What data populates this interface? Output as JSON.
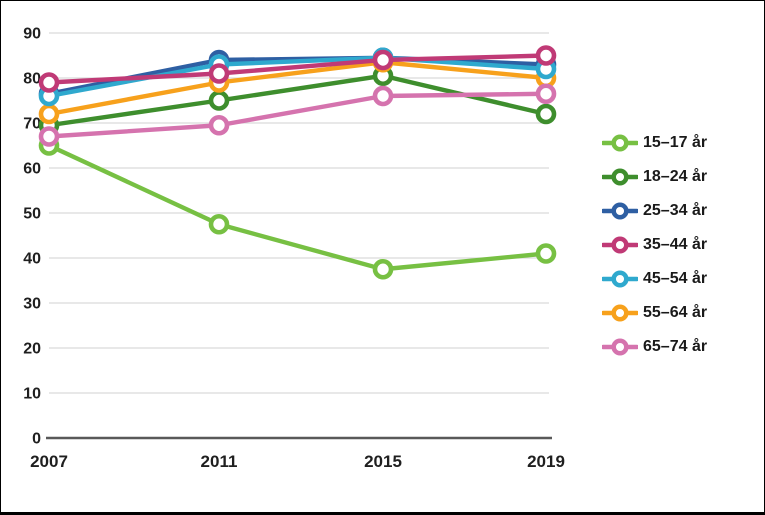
{
  "figure": {
    "background": "#ffffff",
    "border_color": "#000000"
  },
  "chart_data": {
    "type": "line",
    "title": "",
    "xlabel": "",
    "ylabel": "",
    "x_labels": [
      "2007",
      "2011",
      "2015",
      "2019"
    ],
    "y_ticks": [
      0,
      10,
      20,
      30,
      40,
      50,
      60,
      70,
      80,
      90
    ],
    "ylim": [
      0,
      90
    ],
    "grid": "horizontal",
    "gridline_color": "#d9d9d9",
    "axis_color": "#595959",
    "tick_label_color": "#1f1f1f",
    "legend_position": "right",
    "marker_style": "open-circle",
    "series": [
      {
        "id": "15-17",
        "name": "15–17 år",
        "color": "#77c043",
        "values": [
          65,
          47.5,
          37.5,
          41
        ]
      },
      {
        "id": "18-24",
        "name": "18–24 år",
        "color": "#3e8e2d",
        "values": [
          69.5,
          75,
          80.5,
          72
        ]
      },
      {
        "id": "25-34",
        "name": "25–34 år",
        "color": "#2e5fa3",
        "values": [
          76.5,
          84,
          84.5,
          83
        ]
      },
      {
        "id": "35-44",
        "name": "35–44 år",
        "color": "#c03a76",
        "values": [
          79,
          81,
          84,
          85
        ]
      },
      {
        "id": "45-54",
        "name": "45–54 år",
        "color": "#2fa9ce",
        "values": [
          76,
          83,
          84.5,
          82
        ]
      },
      {
        "id": "55-64",
        "name": "55–64 år",
        "color": "#f7a11c",
        "values": [
          72,
          79,
          83.5,
          80
        ]
      },
      {
        "id": "65-74",
        "name": "65–74 år",
        "color": "#d573ae",
        "values": [
          67,
          69.5,
          76,
          76.5
        ]
      }
    ],
    "draw_order": [
      0,
      1,
      2,
      5,
      6,
      4,
      3
    ]
  }
}
